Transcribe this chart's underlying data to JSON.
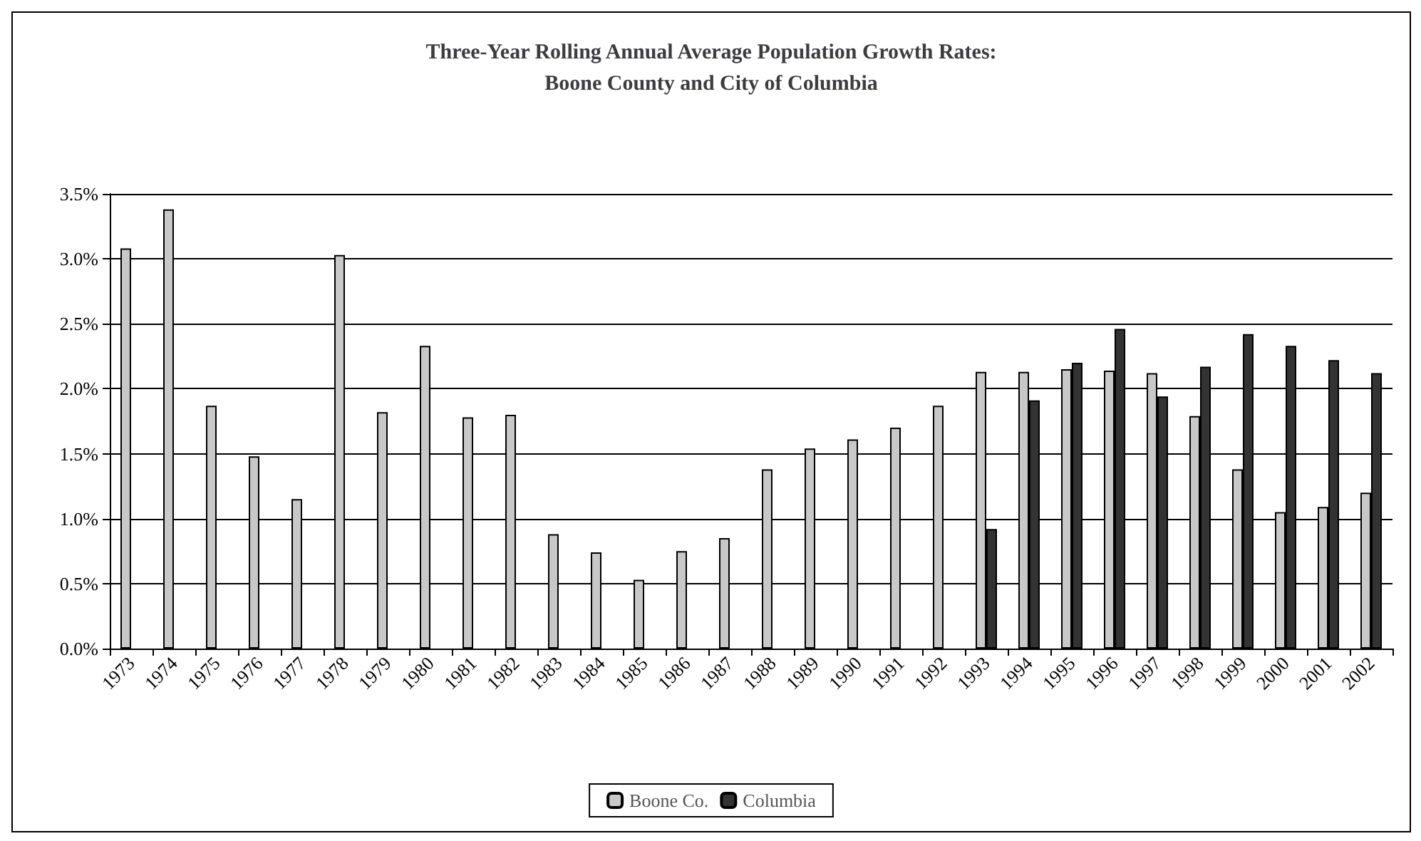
{
  "chart_data": {
    "type": "bar",
    "title": "Three-Year Rolling Annual Average Population Growth Rates:\nBoone County and City of Columbia",
    "categories": [
      "1973",
      "1974",
      "1975",
      "1976",
      "1977",
      "1978",
      "1979",
      "1980",
      "1981",
      "1982",
      "1983",
      "1984",
      "1985",
      "1986",
      "1987",
      "1988",
      "1989",
      "1990",
      "1991",
      "1992",
      "1993",
      "1994",
      "1995",
      "1996",
      "1997",
      "1998",
      "1999",
      "2000",
      "2001",
      "2002"
    ],
    "series": [
      {
        "name": "Boone Co.",
        "color": "#c8c8c8",
        "values": [
          3.08,
          3.38,
          1.87,
          1.48,
          1.15,
          3.03,
          1.82,
          2.33,
          1.78,
          1.8,
          0.88,
          0.74,
          0.53,
          0.75,
          0.85,
          1.38,
          1.54,
          1.61,
          1.7,
          1.87,
          2.13,
          2.13,
          2.15,
          2.14,
          2.12,
          1.79,
          1.38,
          1.05,
          1.09,
          1.2
        ]
      },
      {
        "name": "Columbia",
        "color": "#333333",
        "values": [
          null,
          null,
          null,
          null,
          null,
          null,
          null,
          null,
          null,
          null,
          null,
          null,
          null,
          null,
          null,
          null,
          null,
          null,
          null,
          null,
          0.92,
          1.91,
          2.2,
          2.46,
          1.94,
          2.17,
          2.42,
          2.33,
          2.22,
          2.12
        ]
      }
    ],
    "ylim": [
      0,
      3.5
    ],
    "yticks": [
      {
        "value": 0,
        "label": "0.0%"
      },
      {
        "value": 0.5,
        "label": "0.5%"
      },
      {
        "value": 1,
        "label": "1.0%"
      },
      {
        "value": 1.5,
        "label": "1.5%"
      },
      {
        "value": 2,
        "label": "2.0%"
      },
      {
        "value": 2.5,
        "label": "2.5%"
      },
      {
        "value": 3,
        "label": "3.0%"
      },
      {
        "value": 3.5,
        "label": "3.5%"
      }
    ],
    "grid": "y",
    "legend": "bottom"
  }
}
